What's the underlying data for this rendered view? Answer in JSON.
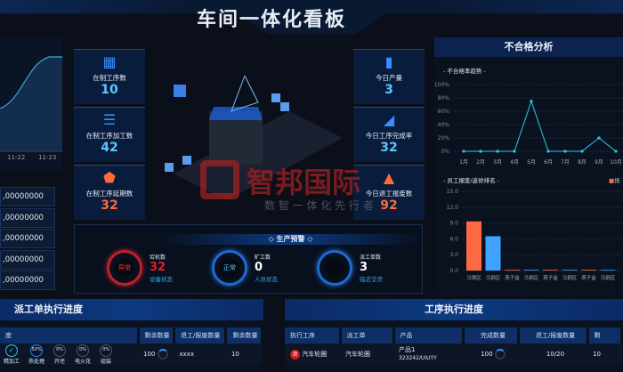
{
  "header": {
    "title": "车间一体化看板"
  },
  "left_chart": {
    "x_labels": [
      "11-22",
      "11-23"
    ]
  },
  "left_list": [
    ",00000000",
    ",00000000",
    ",00000000",
    ",00000000",
    ",00000000"
  ],
  "kpis_left": [
    {
      "label": "在制工序数",
      "value": "10",
      "icon": "cubes-icon"
    },
    {
      "label": "在制工序加工数",
      "value": "42",
      "icon": "database-icon"
    },
    {
      "label": "在制工序延期数",
      "value": "32",
      "icon": "shield-icon"
    }
  ],
  "kpis_right": [
    {
      "label": "今日产量",
      "value": "3",
      "icon": "bar-chart-icon"
    },
    {
      "label": "今日工序完成率",
      "value": "32",
      "icon": "area-chart-icon"
    },
    {
      "label": "今日退工报废数",
      "value": "92",
      "icon": "warning-icon"
    }
  ],
  "warning": {
    "title": "生产预警",
    "items": [
      {
        "ring": "异常",
        "label": "宕机数",
        "value": "32",
        "sub": "设备状态",
        "color": "#e02020"
      },
      {
        "ring": "正常",
        "label": "旷工数",
        "value": "0",
        "sub": "人员状态",
        "color": "#ffffff"
      },
      {
        "ring": "",
        "label": "派工单数",
        "value": "3",
        "sub": "临近交货",
        "color": "#ffffff"
      }
    ]
  },
  "watermark": {
    "name": "智邦国际",
    "slogan": "数 智 一 体 化 先 行 者"
  },
  "right_panel": {
    "title": "不合格分析",
    "line_title": "- 不合格率趋势 -",
    "bar_title": "- 员工报废/返修排名 -",
    "legend": "报"
  },
  "chart_data": [
    {
      "type": "line",
      "title": "- 不合格率趋势 -",
      "categories": [
        "1月",
        "2月",
        "3月",
        "4月",
        "5月",
        "6月",
        "7月",
        "8月",
        "9月",
        "10月"
      ],
      "values": [
        0,
        0,
        0,
        0,
        75,
        0,
        0,
        0,
        20,
        0
      ],
      "yticks": [
        "0%",
        "20%",
        "40%",
        "60%",
        "80%",
        "100%"
      ],
      "ylim": [
        0,
        100
      ],
      "color": "#2ec8e8",
      "grid": true
    },
    {
      "type": "bar",
      "title": "- 员工报废/返修排名 -",
      "categories": [
        "马钢区",
        "马钢区",
        "燕子盒",
        "马钢区",
        "燕子盒",
        "马钢区",
        "燕子盒",
        "马钢区"
      ],
      "values": [
        9.3,
        6.5,
        0,
        0,
        0,
        0,
        0,
        0
      ],
      "colors": [
        "#ff6a45",
        "#3fa2ff"
      ],
      "yticks": [
        "0.0",
        "3.0",
        "6.0",
        "9.0",
        "12.0",
        "15.0"
      ],
      "ylim": [
        0,
        15
      ],
      "grid": true
    }
  ],
  "dispatch": {
    "title": "派工单执行进度",
    "headers": [
      "度",
      "剩余数量",
      "退工/报废数量",
      "剩余数量"
    ],
    "steps": [
      {
        "label": "精加工",
        "state": "✓"
      },
      {
        "label": "热处理",
        "state": "50%"
      },
      {
        "label": "开坯",
        "state": "0%"
      },
      {
        "label": "电火花",
        "state": "0%"
      },
      {
        "label": "组装",
        "state": "0%"
      }
    ],
    "row": {
      "remain": "100",
      "scrap": "xxxx",
      "remain2": "10"
    }
  },
  "process": {
    "title": "工序执行进度",
    "headers": [
      "执行工序",
      "派工单",
      "产品",
      "完成数量",
      "退工/报废数量",
      "剩"
    ],
    "row": {
      "badge": "滴",
      "process": "汽车轮圈",
      "order": "汽车轮圈",
      "product": "产品1",
      "product_code": "323242/UIUYY",
      "done": "100",
      "scrap": "10/20",
      "remain": "10"
    }
  }
}
